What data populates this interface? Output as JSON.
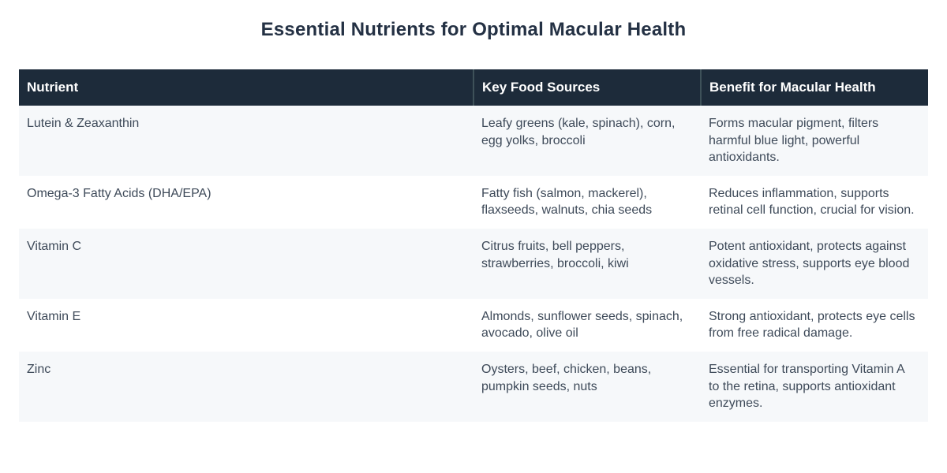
{
  "page": {
    "title": "Essential Nutrients for Optimal Macular Health"
  },
  "table": {
    "columns": {
      "nutrient": "Nutrient",
      "sources": "Key Food Sources",
      "benefit": "Benefit for Macular Health"
    },
    "rows": [
      {
        "nutrient": "Lutein & Zeaxanthin",
        "sources": "Leafy greens (kale, spinach), corn, egg yolks, broccoli",
        "benefit": "Forms macular pigment, filters harmful blue light, powerful antioxidants."
      },
      {
        "nutrient": "Omega-3 Fatty Acids (DHA/EPA)",
        "sources": "Fatty fish (salmon, mackerel), flaxseeds, walnuts, chia seeds",
        "benefit": "Reduces inflammation, supports retinal cell function, crucial for vision."
      },
      {
        "nutrient": "Vitamin C",
        "sources": "Citrus fruits, bell peppers, strawberries, broccoli, kiwi",
        "benefit": "Potent antioxidant, protects against oxidative stress, supports eye blood vessels."
      },
      {
        "nutrient": "Vitamin E",
        "sources": "Almonds, sunflower seeds, spinach, avocado, olive oil",
        "benefit": "Strong antioxidant, protects eye cells from free radical damage."
      },
      {
        "nutrient": "Zinc",
        "sources": "Oysters, beef, chicken, beans, pumpkin seeds, nuts",
        "benefit": "Essential for transporting Vitamin A to the retina, supports antioxidant enzymes."
      }
    ]
  },
  "colors": {
    "header_bg": "#1d2b3a",
    "header_divider": "#3e5159",
    "title": "#243144",
    "body_text": "#3e4a59",
    "row_alt_bg": "#f6f8fa",
    "row_bg": "#ffffff",
    "header_text": "#ffffff"
  }
}
